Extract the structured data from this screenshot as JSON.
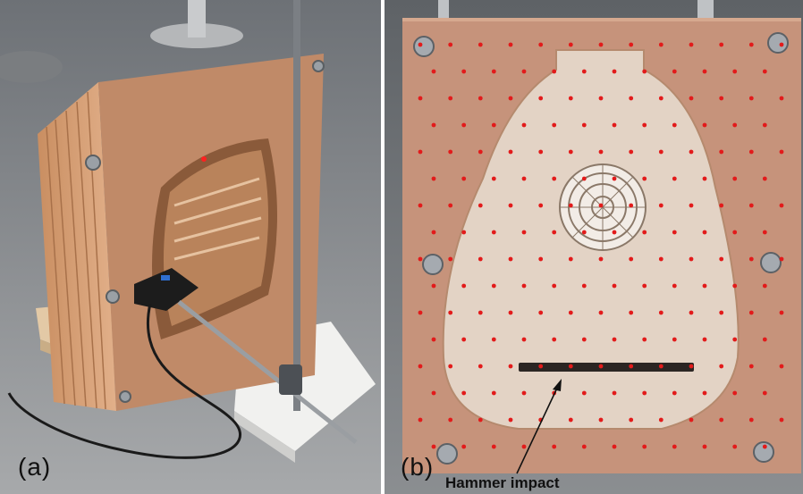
{
  "figure": {
    "panel_a_label": "(a)",
    "panel_b_label": "(b)",
    "annotation": "Hammer impact",
    "colors": {
      "wood_face": "#c6937b",
      "wood_edge": "#d9a178",
      "soundboard": "#e6d6c8",
      "measurement_point": "#e21b1b",
      "background_floor": "#8d9093"
    }
  }
}
